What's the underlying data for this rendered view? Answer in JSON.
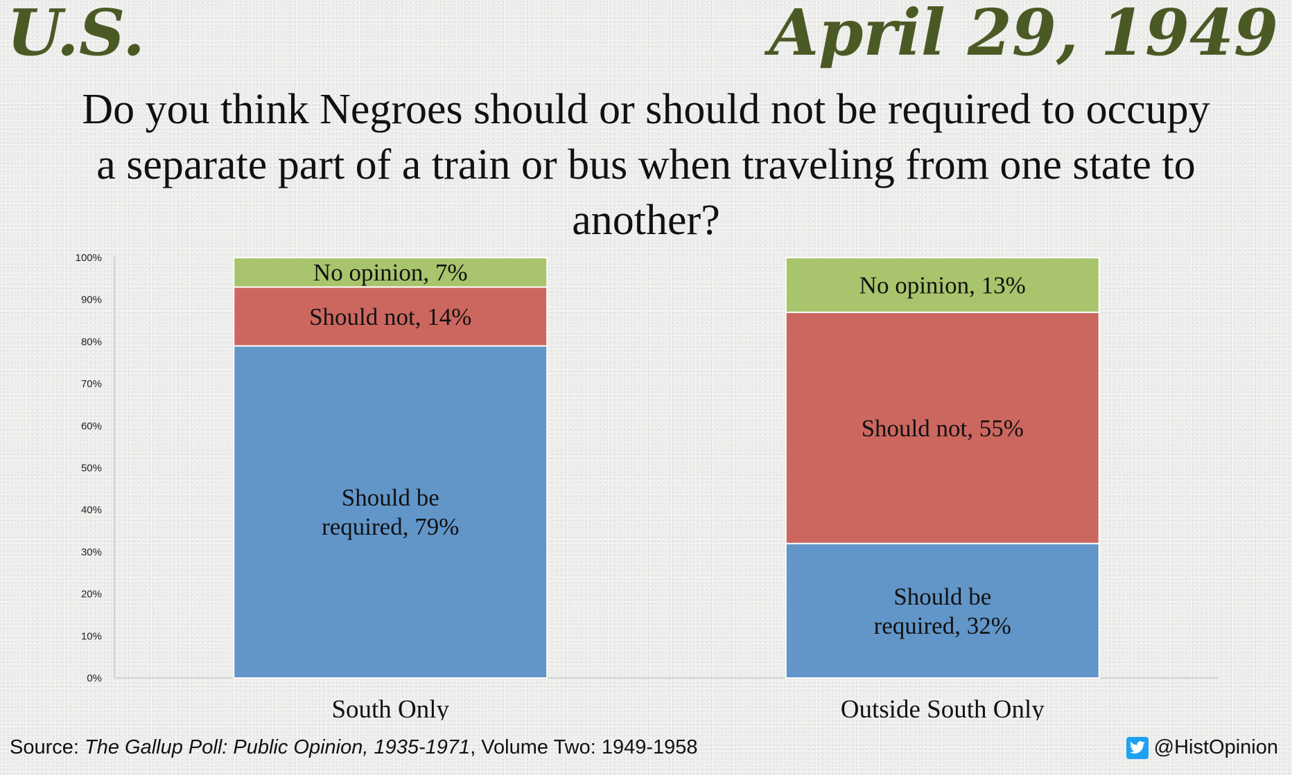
{
  "header": {
    "left": "U.S.",
    "right": "April 29, 1949",
    "question": "Do you think Negroes should or should not be required to occupy a separate part of a train or bus when traveling from one state to another?"
  },
  "chart_data": {
    "type": "bar",
    "stacked": true,
    "categories": [
      "South Only",
      "Outside South Only"
    ],
    "series": [
      {
        "name": "Should be required",
        "values": [
          79,
          32
        ],
        "color": "#6296c9",
        "labels": [
          "Should be|required, 79%",
          "Should be|required, 32%"
        ]
      },
      {
        "name": "Should not",
        "values": [
          14,
          55
        ],
        "color": "#cc6760",
        "labels": [
          "Should not, 14%",
          "Should not, 55%"
        ]
      },
      {
        "name": "No opinion",
        "values": [
          7,
          13
        ],
        "color": "#a8c46c",
        "labels": [
          "No opinion, 7%",
          "No opinion, 13%"
        ]
      }
    ],
    "ylim": [
      0,
      100
    ],
    "yticks": [
      0,
      10,
      20,
      30,
      40,
      50,
      60,
      70,
      80,
      90,
      100
    ],
    "ytick_suffix": "%",
    "grid": false,
    "legend": "none"
  },
  "footer": {
    "source_prefix": "Source: ",
    "source_title": "The Gallup Poll: Public Opinion, 1935-1971",
    "source_suffix": ", Volume Two: 1949-1958",
    "credit": "@HistOpinion",
    "credit_icon": "twitter-icon"
  }
}
